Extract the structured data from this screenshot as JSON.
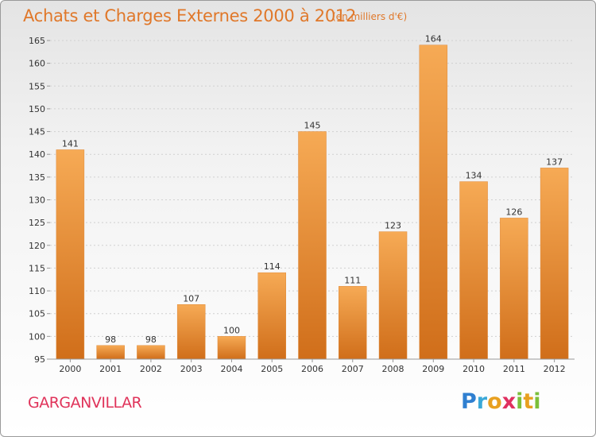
{
  "header": {
    "title": "Achats et Charges Externes 2000 à 2012",
    "subtitle": "(en milliers d'€)"
  },
  "footer": {
    "city": "GARGANVILLAR",
    "logo": "Proxiti"
  },
  "colors": {
    "accent": "#e0782a",
    "city": "#e0335a",
    "bar_light": "#f5a650",
    "bar_dark": "#d2711c"
  },
  "chart_data": {
    "type": "bar",
    "categories": [
      "2000",
      "2001",
      "2002",
      "2003",
      "2004",
      "2005",
      "2006",
      "2007",
      "2008",
      "2009",
      "2010",
      "2011",
      "2012"
    ],
    "values": [
      141,
      98,
      98,
      107,
      100,
      114,
      145,
      111,
      123,
      164,
      134,
      126,
      137
    ],
    "title": "Achats et Charges Externes 2000 à 2012",
    "xlabel": "",
    "ylabel": "",
    "ylim": [
      95,
      165
    ],
    "yticks": [
      95,
      100,
      105,
      110,
      115,
      120,
      125,
      130,
      135,
      140,
      145,
      150,
      155,
      160,
      165
    ],
    "grid": true,
    "data_labels": true
  }
}
